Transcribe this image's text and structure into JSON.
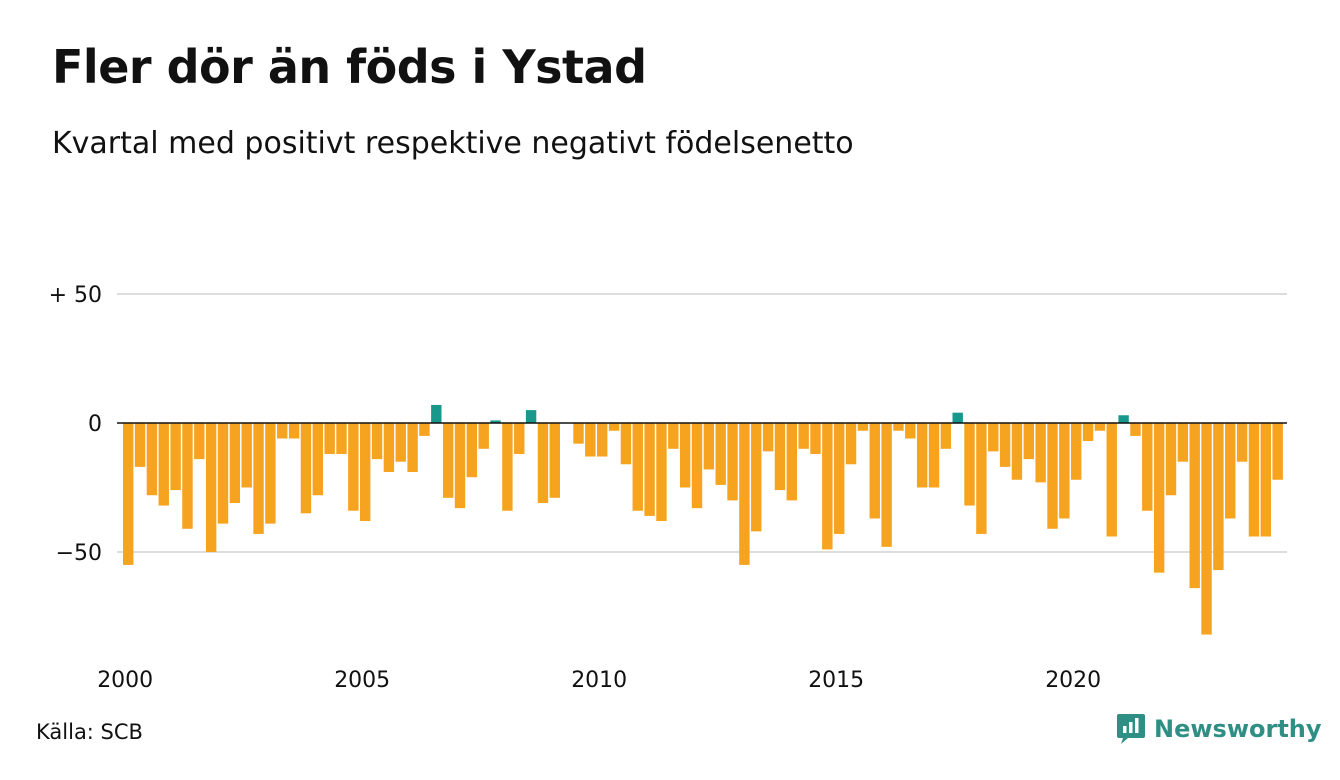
{
  "chart_data": {
    "type": "bar",
    "title": "Fler dör än föds i Ystad",
    "subtitle": "Kvartal med positivt respektive negativt födelsenetto",
    "xlabel": "",
    "ylabel": "",
    "x_start_year": 2000,
    "periods_per_year": 4,
    "x_ticks": [
      "2000",
      "2005",
      "2010",
      "2015",
      "2020"
    ],
    "y_ticks": [
      {
        "value": 50,
        "label": "+ 50"
      },
      {
        "value": 0,
        "label": "0"
      },
      {
        "value": -50,
        "label": "−50"
      }
    ],
    "ylim": [
      -85,
      50
    ],
    "grid": true,
    "legend": "none",
    "colors": {
      "positive": "#17988a",
      "negative": "#f6a31f",
      "grid": "#dddddd",
      "zero_line": "#111111"
    },
    "values": [
      -55,
      -17,
      -28,
      -32,
      -26,
      -41,
      -14,
      -50,
      -39,
      -31,
      -25,
      -43,
      -39,
      -6,
      -6,
      -35,
      -28,
      -12,
      -12,
      -34,
      -38,
      -14,
      -19,
      -15,
      -19,
      -5,
      7,
      -29,
      -33,
      -21,
      -10,
      1,
      -34,
      -12,
      5,
      -31,
      -29,
      0,
      -8,
      -13,
      -13,
      -3,
      -16,
      -34,
      -36,
      -38,
      -10,
      -25,
      -33,
      -18,
      -24,
      -30,
      -55,
      -42,
      -11,
      -26,
      -30,
      -10,
      -12,
      -49,
      -43,
      -16,
      -3,
      -37,
      -48,
      -3,
      -6,
      -25,
      -25,
      -10,
      4,
      -32,
      -43,
      -11,
      -17,
      -22,
      -14,
      -23,
      -41,
      -37,
      -22,
      -7,
      -3,
      -44,
      3,
      -5,
      -34,
      -58,
      -28,
      -15,
      -64,
      -82,
      -57,
      -37,
      -15,
      -44,
      -44,
      -22
    ]
  },
  "footer": {
    "source": "Källa: SCB",
    "brand": "Newsworthy"
  }
}
